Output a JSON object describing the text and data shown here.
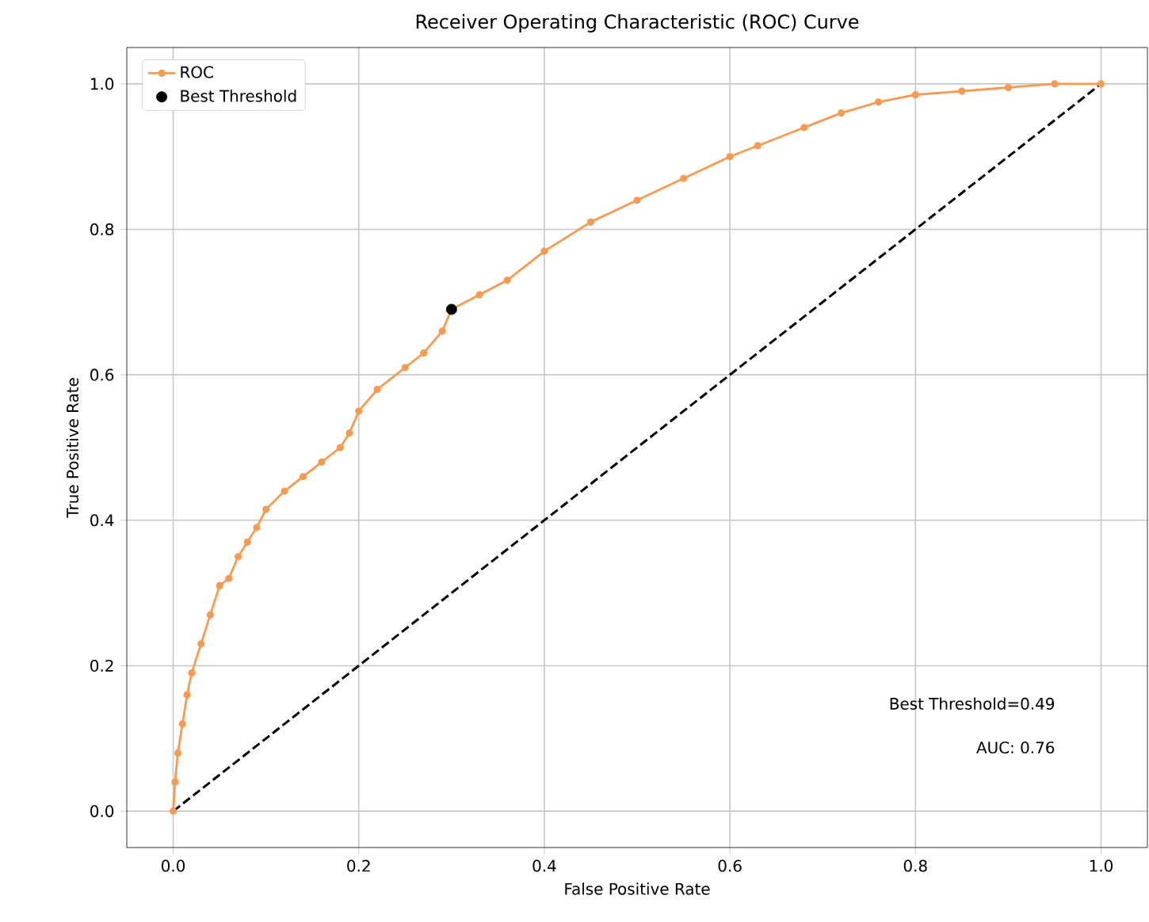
{
  "chart_data": {
    "type": "line",
    "title": "Receiver Operating Characteristic (ROC) Curve",
    "xlabel": "False Positive Rate",
    "ylabel": "True Positive Rate",
    "xlim": [
      -0.05,
      1.05
    ],
    "ylim": [
      -0.05,
      1.05
    ],
    "xticks": [
      {
        "value": 0,
        "label": "0.0"
      },
      {
        "value": 0.2,
        "label": "0.2"
      },
      {
        "value": 0.4,
        "label": "0.4"
      },
      {
        "value": 0.6,
        "label": "0.6"
      },
      {
        "value": 0.8,
        "label": "0.8"
      },
      {
        "value": 1,
        "label": "1.0"
      }
    ],
    "yticks": [
      {
        "value": 0,
        "label": "0.0"
      },
      {
        "value": 0.2,
        "label": "0.2"
      },
      {
        "value": 0.4,
        "label": "0.4"
      },
      {
        "value": 0.6,
        "label": "0.6"
      },
      {
        "value": 0.8,
        "label": "0.8"
      },
      {
        "value": 1,
        "label": "1.0"
      }
    ],
    "grid": true,
    "legend": "top left",
    "annotations": [
      "Best Threshold=0.49",
      "AUC: 0.76"
    ],
    "series": [
      {
        "name": "ROC",
        "color": "#fa9a50",
        "marker": "circle",
        "line_style": "solid",
        "x": [
          0,
          0.002,
          0.005,
          0.01,
          0.015,
          0.02,
          0.03,
          0.04,
          0.05,
          0.06,
          0.07,
          0.08,
          0.09,
          0.1,
          0.12,
          0.14,
          0.16,
          0.18,
          0.19,
          0.2,
          0.22,
          0.25,
          0.27,
          0.29,
          0.3,
          0.33,
          0.36,
          0.4,
          0.45,
          0.5,
          0.55,
          0.6,
          0.63,
          0.68,
          0.72,
          0.76,
          0.8,
          0.85,
          0.9,
          0.95,
          1.0
        ],
        "values": [
          0,
          0.04,
          0.08,
          0.12,
          0.16,
          0.19,
          0.23,
          0.27,
          0.31,
          0.32,
          0.35,
          0.37,
          0.39,
          0.415,
          0.44,
          0.46,
          0.48,
          0.5,
          0.52,
          0.55,
          0.58,
          0.61,
          0.63,
          0.66,
          0.69,
          0.71,
          0.73,
          0.77,
          0.81,
          0.84,
          0.87,
          0.9,
          0.915,
          0.94,
          0.96,
          0.975,
          0.985,
          0.99,
          0.995,
          1.0,
          1.0
        ]
      },
      {
        "name": "Best Threshold",
        "type": "scatter",
        "color": "#000000",
        "marker": "circle",
        "x": [
          0.3
        ],
        "values": [
          0.69
        ]
      },
      {
        "color": "#000000",
        "marker": "none",
        "line_style": "dashed",
        "x": [
          0,
          1
        ],
        "values": [
          0,
          1
        ]
      }
    ]
  }
}
